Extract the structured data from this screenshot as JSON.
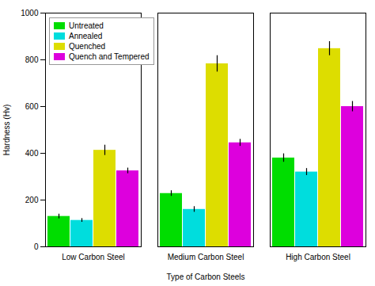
{
  "chart_data": {
    "type": "bar",
    "xlabel": "Type of Carbon Steels",
    "ylabel": "Hardness (Hv)",
    "categories": [
      "Low Carbon Steel",
      "Medium Carbon Steel",
      "High Carbon Steel"
    ],
    "series": [
      {
        "name": "Untreated",
        "color": "#00dd00",
        "values": [
          130,
          228,
          380
        ],
        "errors": [
          10,
          12,
          18
        ]
      },
      {
        "name": "Annealed",
        "color": "#00dddd",
        "values": [
          113,
          160,
          320
        ],
        "errors": [
          8,
          12,
          15
        ]
      },
      {
        "name": "Quenched",
        "color": "#dddd00",
        "values": [
          413,
          783,
          848
        ],
        "errors": [
          22,
          35,
          30
        ]
      },
      {
        "name": "Quench and Tempered",
        "color": "#dd00dd",
        "values": [
          325,
          445,
          600
        ],
        "errors": [
          12,
          15,
          22
        ]
      }
    ],
    "ylim": [
      0,
      1000
    ],
    "yticks": [
      0,
      200,
      400,
      600,
      800,
      1000
    ],
    "legend": "upper left",
    "grid": false
  }
}
